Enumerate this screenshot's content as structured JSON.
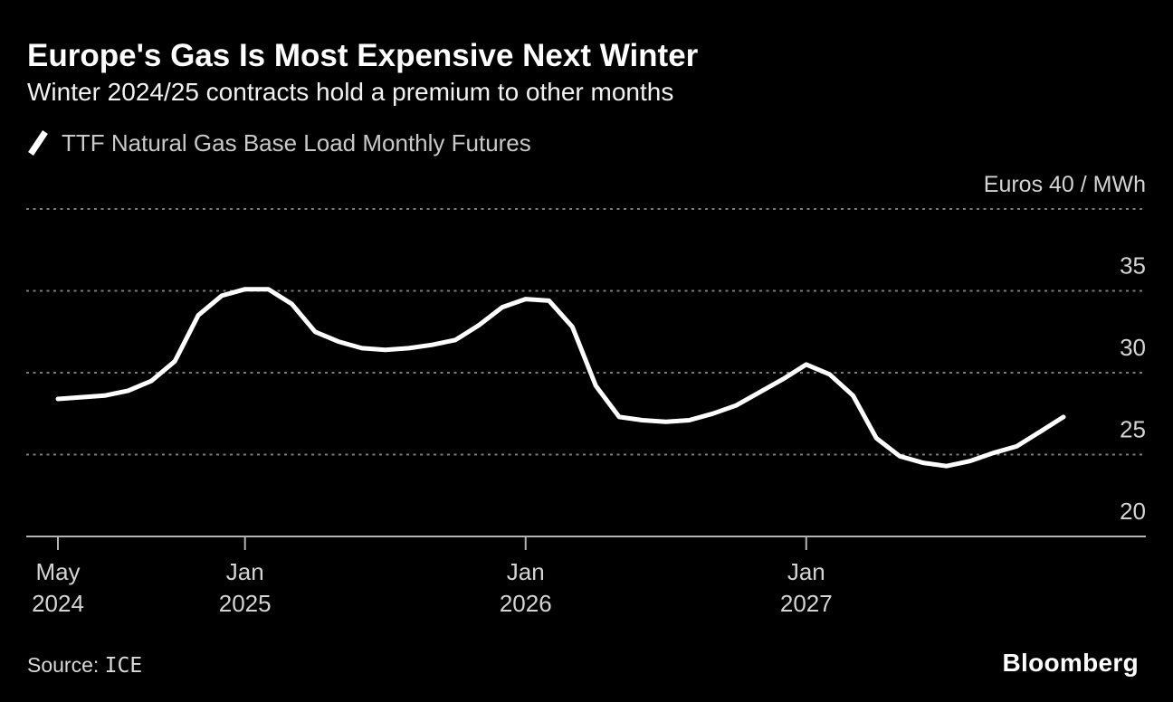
{
  "header": {
    "title": "Europe's Gas Is Most Expensive Next Winter",
    "subtitle": "Winter 2024/25 contracts hold a premium to other months"
  },
  "legend": {
    "label": "TTF Natural Gas Base Load Monthly Futures",
    "swatch_color": "#ffffff"
  },
  "source": {
    "label": "Source:",
    "value": "ICE"
  },
  "branding": {
    "logo": "Bloomberg"
  },
  "colors": {
    "background": "#000000",
    "line": "#ffffff",
    "grid": "#7a7a7a",
    "axis": "#b3b3b3",
    "tick_label": "#d4d4d4"
  },
  "chart_data": {
    "type": "line",
    "title": "TTF Natural Gas Base Load Monthly Futures",
    "unit_label": "Euros 40 / MWh",
    "ylabel": "Euros / MWh",
    "ylim": [
      20,
      40
    ],
    "grid": "dotted-horizontal",
    "grid_values": [
      40,
      35,
      30,
      25
    ],
    "ytick_labels": [
      "35",
      "30",
      "25",
      "20"
    ],
    "legend_position": "top-left",
    "xticks": [
      {
        "month": "May",
        "year": "2024",
        "index": 0
      },
      {
        "month": "Jan",
        "year": "2025",
        "index": 8
      },
      {
        "month": "Jan",
        "year": "2026",
        "index": 20
      },
      {
        "month": "Jan",
        "year": "2027",
        "index": 32
      }
    ],
    "x": [
      "May 2024",
      "Jun 2024",
      "Jul 2024",
      "Aug 2024",
      "Sep 2024",
      "Oct 2024",
      "Nov 2024",
      "Dec 2024",
      "Jan 2025",
      "Feb 2025",
      "Mar 2025",
      "Apr 2025",
      "May 2025",
      "Jun 2025",
      "Jul 2025",
      "Aug 2025",
      "Sep 2025",
      "Oct 2025",
      "Nov 2025",
      "Dec 2025",
      "Jan 2026",
      "Feb 2026",
      "Mar 2026",
      "Apr 2026",
      "May 2026",
      "Jun 2026",
      "Jul 2026",
      "Aug 2026",
      "Sep 2026",
      "Oct 2026",
      "Nov 2026",
      "Dec 2026",
      "Jan 2027",
      "Feb 2027",
      "Mar 2027",
      "Apr 2027",
      "May 2027",
      "Jun 2027",
      "Jul 2027",
      "Aug 2027",
      "Sep 2027",
      "Oct 2027",
      "Nov 2027",
      "Dec 2027"
    ],
    "series": [
      {
        "name": "TTF Natural Gas Base Load Monthly Futures",
        "values": [
          28.4,
          28.5,
          28.6,
          28.9,
          29.5,
          30.7,
          33.5,
          34.7,
          35.1,
          35.1,
          34.2,
          32.5,
          31.9,
          31.5,
          31.4,
          31.5,
          31.7,
          32.0,
          32.9,
          34.0,
          34.5,
          34.4,
          32.8,
          29.2,
          27.3,
          27.1,
          27.0,
          27.1,
          27.5,
          28.0,
          28.8,
          29.6,
          30.5,
          29.9,
          28.6,
          26.0,
          24.9,
          24.5,
          24.3,
          24.6,
          25.1,
          25.5,
          26.4,
          27.3
        ]
      }
    ]
  }
}
